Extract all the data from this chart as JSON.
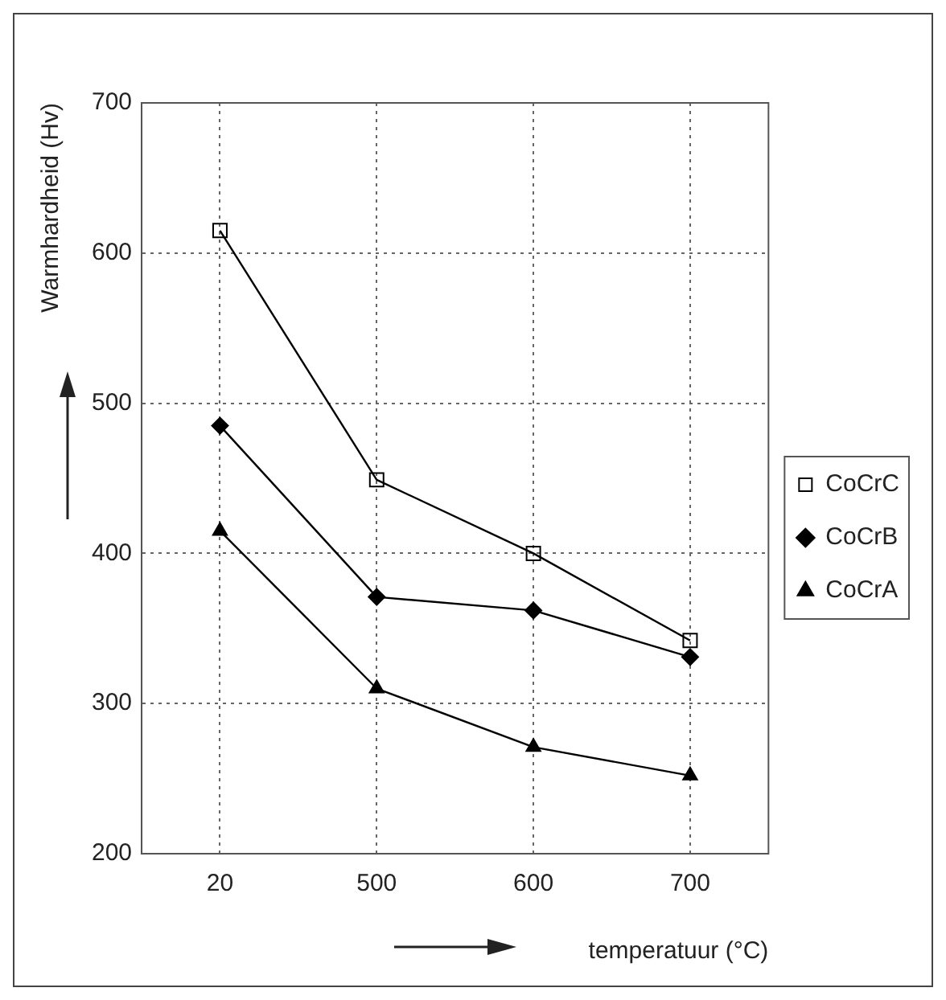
{
  "chart_data": {
    "type": "line",
    "xlabel": "temperatuur (°C)",
    "ylabel": "Warmhardheid (Hv)",
    "categories": [
      "20",
      "500",
      "600",
      "700"
    ],
    "ylim": [
      200,
      700
    ],
    "yticks": [
      200,
      300,
      400,
      500,
      600,
      700
    ],
    "grid": true,
    "legend": "right",
    "line_style": "solid",
    "series": [
      {
        "name": "CoCrC",
        "color": "#000000",
        "marker": "square",
        "values": [
          615,
          449,
          400,
          342
        ]
      },
      {
        "name": "CoCrB",
        "color": "#000000",
        "marker": "diamond",
        "values": [
          485,
          371,
          362,
          331
        ]
      },
      {
        "name": "CoCrA",
        "color": "#000000",
        "marker": "triangle",
        "values": [
          415,
          310,
          271,
          252
        ]
      }
    ]
  }
}
